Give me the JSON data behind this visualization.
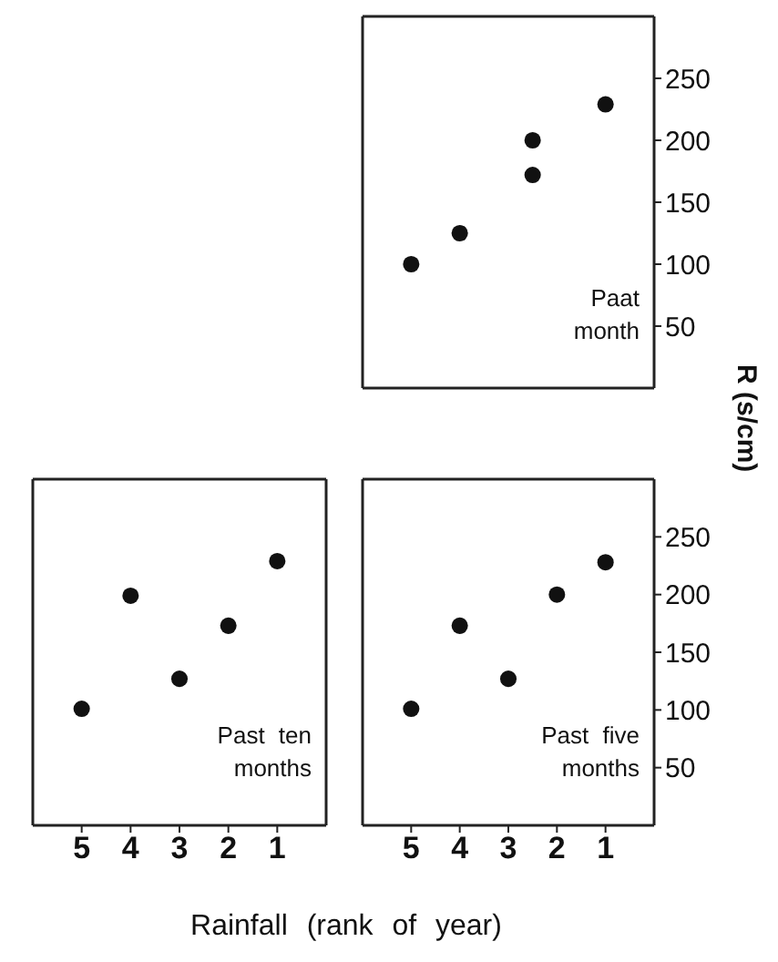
{
  "chart_data": [
    {
      "type": "scatter",
      "ylabel": "R (s/cm)",
      "annotations": [
        "Paat month"
      ],
      "tick_labels": "y",
      "marker": "circle",
      "grid": false,
      "legend": false,
      "xlim": [
        6,
        0
      ],
      "xticks": [
        5,
        4,
        3,
        2,
        1
      ],
      "ylim": [
        0,
        300
      ],
      "yticks": [
        50,
        100,
        150,
        200,
        250
      ],
      "series": [
        {
          "color": "#111111",
          "x": [
            5,
            4,
            2.5,
            2.5,
            1
          ],
          "values": [
            100,
            125,
            200,
            172,
            229
          ]
        }
      ]
    },
    {
      "type": "scatter",
      "xlabel": "Rainfall (rank of year)",
      "annotations": [
        "Past ten months"
      ],
      "tick_labels": "x",
      "marker": "circle",
      "grid": false,
      "legend": false,
      "xlim": [
        6,
        0
      ],
      "xticks": [
        5,
        4,
        3,
        2,
        1
      ],
      "ylim": [
        0,
        300
      ],
      "yticks": [
        50,
        100,
        150,
        200,
        250
      ],
      "series": [
        {
          "color": "#111111",
          "x": [
            5,
            4,
            3,
            2,
            1
          ],
          "values": [
            101,
            199,
            127,
            173,
            229
          ]
        }
      ]
    },
    {
      "type": "scatter",
      "annotations": [
        "Past five months"
      ],
      "marker": "circle",
      "grid": false,
      "legend": false,
      "xlim": [
        6,
        0
      ],
      "xticks": [
        5,
        4,
        3,
        2,
        1
      ],
      "ylim": [
        0,
        300
      ],
      "yticks": [
        50,
        100,
        150,
        200,
        250
      ],
      "series": [
        {
          "color": "#111111",
          "x": [
            5,
            4,
            3,
            2,
            1
          ],
          "values": [
            101,
            173,
            127,
            200,
            228
          ]
        }
      ]
    }
  ]
}
